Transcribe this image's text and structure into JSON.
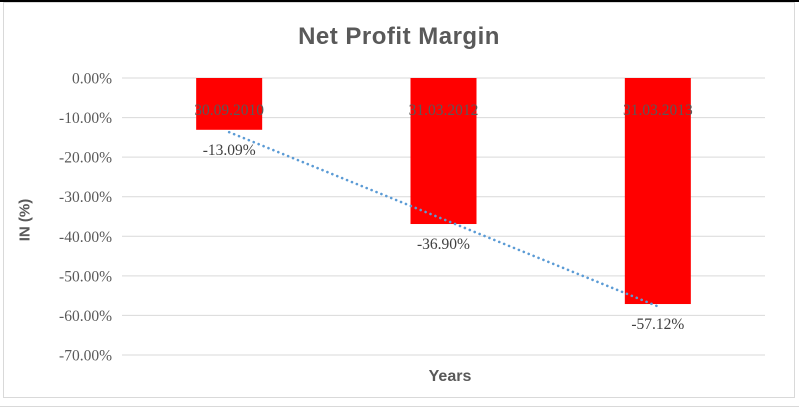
{
  "page": {
    "top_edge_color": "#000000",
    "bottom_edge_color": "#d9d9d9",
    "frame_border_color": "#d9d9d9",
    "background_color": "#ffffff"
  },
  "chart_data": {
    "type": "bar",
    "title": "Net Profit Margin",
    "xlabel": "Years",
    "ylabel": "IN (%)",
    "categories": [
      "30.09.2010",
      "31.03.2012",
      "31.03.2013"
    ],
    "values": [
      -13.09,
      -36.9,
      -57.12
    ],
    "data_labels": [
      "-13.09%",
      "-36.90%",
      "-57.12%"
    ],
    "ylim": [
      -70,
      0
    ],
    "ytick_step": 10,
    "ytick_labels": [
      "0.00%",
      "-10.00%",
      "-20.00%",
      "-30.00%",
      "-40.00%",
      "-50.00%",
      "-60.00%",
      "-70.00%"
    ],
    "grid": true,
    "grid_color": "#d9d9d9",
    "legend": "none",
    "bar_color": "#ff0000",
    "title_color": "#595959",
    "axis_text_color": "#595959",
    "data_label_color": "#404040",
    "trendline": {
      "type": "linear",
      "style": "dotted",
      "color": "#5b9bd5"
    }
  }
}
